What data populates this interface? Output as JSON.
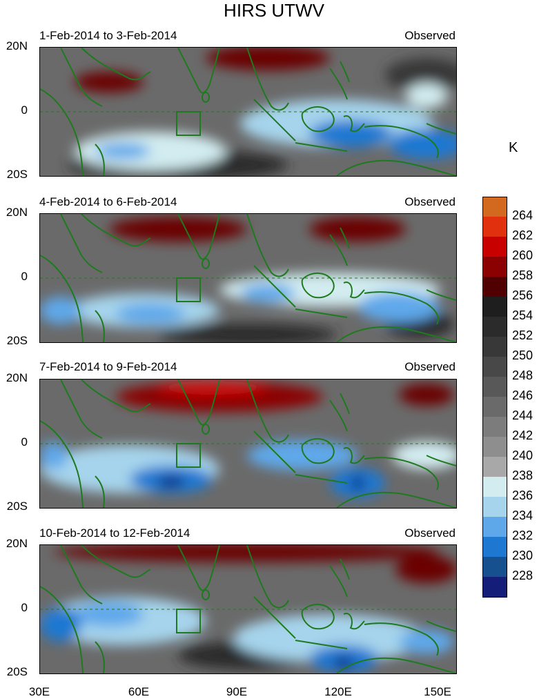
{
  "title": "HIRS UTWV",
  "panels": [
    {
      "date_range": "1-Feb-2014 to 3-Feb-2014",
      "label": "Observed"
    },
    {
      "date_range": "4-Feb-2014 to 6-Feb-2014",
      "label": "Observed"
    },
    {
      "date_range": "7-Feb-2014 to 9-Feb-2014",
      "label": "Observed"
    },
    {
      "date_range": "10-Feb-2014 to 12-Feb-2014",
      "label": "Observed"
    }
  ],
  "y_ticks": [
    "20N",
    "0",
    "20S"
  ],
  "x_ticks": [
    "30E",
    "60E",
    "90E",
    "120E",
    "150E"
  ],
  "colorbar": {
    "unit": "K",
    "levels": [
      "264",
      "262",
      "260",
      "258",
      "256",
      "254",
      "252",
      "250",
      "248",
      "246",
      "244",
      "242",
      "240",
      "238",
      "236",
      "234",
      "232",
      "230",
      "228"
    ],
    "colors": [
      "#d2691e",
      "#e0300e",
      "#c80000",
      "#8b0000",
      "#500000",
      "#1e1e1e",
      "#2b2b2b",
      "#383838",
      "#484848",
      "#585858",
      "#6a6a6a",
      "#7c7c7c",
      "#8e8e8e",
      "#a8a8a8",
      "#d2ecf0",
      "#a6d4ec",
      "#5ea8ea",
      "#1e78d2",
      "#16508e",
      "#141e78"
    ]
  },
  "colors": {
    "coast": "#1e7a1e",
    "equator": "#1e7a1e"
  }
}
